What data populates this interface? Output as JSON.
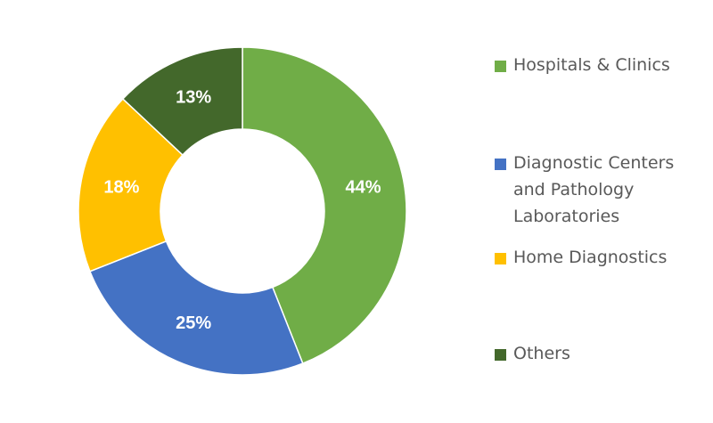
{
  "chart_data": {
    "type": "donut",
    "categories": [
      "Hospitals & Clinics",
      "Diagnostic Centers and Pathology Laboratories",
      "Home Diagnostics",
      "Others"
    ],
    "values": [
      44,
      25,
      18,
      13
    ],
    "value_labels": [
      "44%",
      "25%",
      "18%",
      "13%"
    ],
    "colors": [
      "#70ad47",
      "#4472c4",
      "#ffc000",
      "#43682b"
    ],
    "legend": "right"
  }
}
